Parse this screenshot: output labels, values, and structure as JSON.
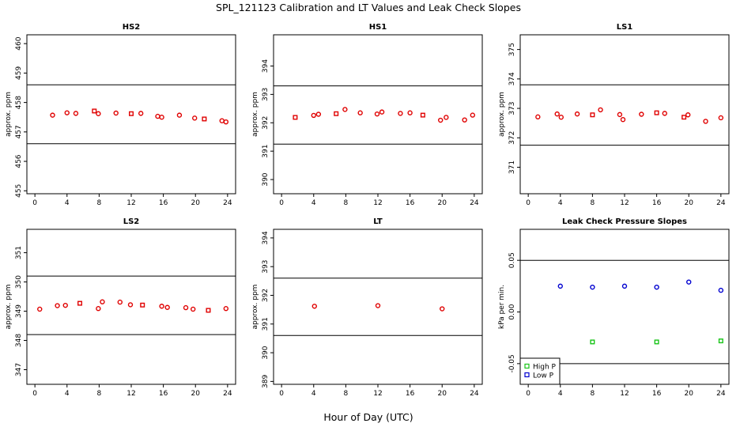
{
  "figure": {
    "title": "SPL_121123  Calibration and LT Values and Leak Check Slopes",
    "xlabel": "Hour of Day (UTC)"
  },
  "colors": {
    "red": "#e00000",
    "green": "#18c418",
    "blue": "#0000d0",
    "axis": "#000000"
  },
  "chart_data": [
    {
      "id": "hs2",
      "type": "scatter",
      "title": "HS2",
      "ylabel": "approx. ppm",
      "xlim": [
        -1,
        25
      ],
      "xticks": [
        0,
        4,
        8,
        12,
        16,
        20,
        24
      ],
      "ylim": [
        454.9,
        460.3
      ],
      "yticks": [
        455,
        456,
        457,
        458,
        459,
        460
      ],
      "hlines": [
        458.6,
        456.6
      ],
      "series": [
        {
          "name": "values",
          "color": "red",
          "x": [
            2.2,
            4,
            5.1,
            7.4,
            7.9,
            10.1,
            12,
            13.2,
            15.3,
            15.8,
            18,
            19.9,
            21.1,
            23.3,
            23.8
          ],
          "y": [
            457.57,
            457.65,
            457.63,
            457.71,
            457.62,
            457.64,
            457.62,
            457.63,
            457.53,
            457.5,
            457.57,
            457.47,
            457.44,
            457.38,
            457.34
          ],
          "markers": [
            "circle",
            "circle",
            "circle",
            "square",
            "circle",
            "circle",
            "square",
            "circle",
            "circle",
            "circle",
            "circle",
            "circle",
            "square",
            "circle",
            "circle"
          ]
        }
      ]
    },
    {
      "id": "hs1",
      "type": "scatter",
      "title": "HS1",
      "ylabel": "approx. ppm",
      "xlim": [
        -1,
        25
      ],
      "xticks": [
        0,
        4,
        8,
        12,
        16,
        20,
        24
      ],
      "ylim": [
        389.5,
        395.1
      ],
      "yticks": [
        390,
        391,
        392,
        393,
        394
      ],
      "hlines": [
        393.3,
        391.25
      ],
      "series": [
        {
          "name": "values",
          "color": "red",
          "x": [
            1.7,
            4,
            4.6,
            6.8,
            7.9,
            9.8,
            11.9,
            12.5,
            14.8,
            16,
            17.6,
            19.8,
            20.5,
            22.8,
            23.8
          ],
          "y": [
            392.19,
            392.26,
            392.3,
            392.32,
            392.47,
            392.35,
            392.31,
            392.38,
            392.33,
            392.35,
            392.27,
            392.09,
            392.19,
            392.1,
            392.27
          ],
          "markers": [
            "square",
            "circle",
            "circle",
            "square",
            "circle",
            "circle",
            "circle",
            "circle",
            "circle",
            "circle",
            "square",
            "circle",
            "circle",
            "circle",
            "circle"
          ]
        }
      ]
    },
    {
      "id": "ls1",
      "type": "scatter",
      "title": "LS1",
      "ylabel": "approx. ppm",
      "xlim": [
        -1,
        25
      ],
      "xticks": [
        0,
        4,
        8,
        12,
        16,
        20,
        24
      ],
      "ylim": [
        370.1,
        375.5
      ],
      "yticks": [
        371,
        372,
        373,
        374,
        375
      ],
      "hlines": [
        373.8,
        371.75
      ],
      "series": [
        {
          "name": "values",
          "color": "red",
          "x": [
            1.2,
            3.6,
            4.1,
            6.1,
            8,
            9,
            11.4,
            11.8,
            14.1,
            16,
            17,
            19.4,
            19.9,
            22.1,
            24
          ],
          "y": [
            372.71,
            372.81,
            372.7,
            372.81,
            372.78,
            372.95,
            372.79,
            372.62,
            372.8,
            372.85,
            372.83,
            372.7,
            372.78,
            372.56,
            372.68
          ],
          "markers": [
            "circle",
            "circle",
            "circle",
            "circle",
            "square",
            "circle",
            "circle",
            "circle",
            "circle",
            "square",
            "circle",
            "square",
            "circle",
            "circle",
            "circle"
          ]
        }
      ]
    },
    {
      "id": "ls2",
      "type": "scatter",
      "title": "LS2",
      "ylabel": "approx. ppm",
      "xlim": [
        -1,
        25
      ],
      "xticks": [
        0,
        4,
        8,
        12,
        16,
        20,
        24
      ],
      "ylim": [
        346.5,
        351.8
      ],
      "yticks": [
        347,
        348,
        349,
        350,
        351
      ],
      "hlines": [
        350.2,
        348.2
      ],
      "series": [
        {
          "name": "values",
          "color": "red",
          "x": [
            0.6,
            2.8,
            3.8,
            5.6,
            7.9,
            8.4,
            10.6,
            11.9,
            13.4,
            15.8,
            16.5,
            18.8,
            19.7,
            21.6,
            23.8
          ],
          "y": [
            349.07,
            349.19,
            349.2,
            349.27,
            349.09,
            349.32,
            349.31,
            349.22,
            349.21,
            349.17,
            349.13,
            349.12,
            349.07,
            349.03,
            349.09
          ],
          "markers": [
            "circle",
            "circle",
            "circle",
            "square",
            "circle",
            "circle",
            "circle",
            "circle",
            "square",
            "circle",
            "circle",
            "circle",
            "circle",
            "square",
            "circle"
          ]
        }
      ]
    },
    {
      "id": "lt",
      "type": "scatter",
      "title": "LT",
      "ylabel": "approx. ppm",
      "xlim": [
        -1,
        25
      ],
      "xticks": [
        0,
        4,
        8,
        12,
        16,
        20,
        24
      ],
      "ylim": [
        388.9,
        394.3
      ],
      "yticks": [
        389,
        390,
        391,
        392,
        393,
        394
      ],
      "hlines": [
        392.6,
        390.6
      ],
      "series": [
        {
          "name": "values",
          "color": "red",
          "x": [
            4.1,
            12,
            20
          ],
          "y": [
            391.62,
            391.64,
            391.53
          ],
          "markers": [
            "circle",
            "circle",
            "circle"
          ]
        }
      ]
    },
    {
      "id": "leak",
      "type": "scatter",
      "title": "Leak Check Pressure Slopes",
      "ylabel": "kPa per min.",
      "xlim": [
        -1,
        25
      ],
      "xticks": [
        0,
        4,
        8,
        12,
        16,
        20,
        24
      ],
      "ylim": [
        -0.07,
        0.08
      ],
      "yticks": [
        -0.05,
        0.0,
        0.05
      ],
      "yticklabels": [
        "-0.05",
        "0.00",
        "0.05"
      ],
      "hlines": [
        0.05,
        -0.05
      ],
      "series": [
        {
          "name": "High P",
          "color": "green",
          "x": [
            8,
            16,
            24
          ],
          "y": [
            -0.029,
            -0.029,
            -0.028
          ],
          "markers": [
            "square",
            "square",
            "square"
          ]
        },
        {
          "name": "Low P",
          "color": "blue",
          "x": [
            4,
            8,
            12,
            16,
            20,
            24
          ],
          "y": [
            0.025,
            0.024,
            0.025,
            0.024,
            0.029,
            0.021
          ],
          "markers": [
            "circle",
            "circle",
            "circle",
            "circle",
            "circle",
            "circle"
          ]
        }
      ],
      "legend": {
        "position": "bottom-left",
        "entries": [
          "High P",
          "Low P"
        ]
      }
    }
  ]
}
